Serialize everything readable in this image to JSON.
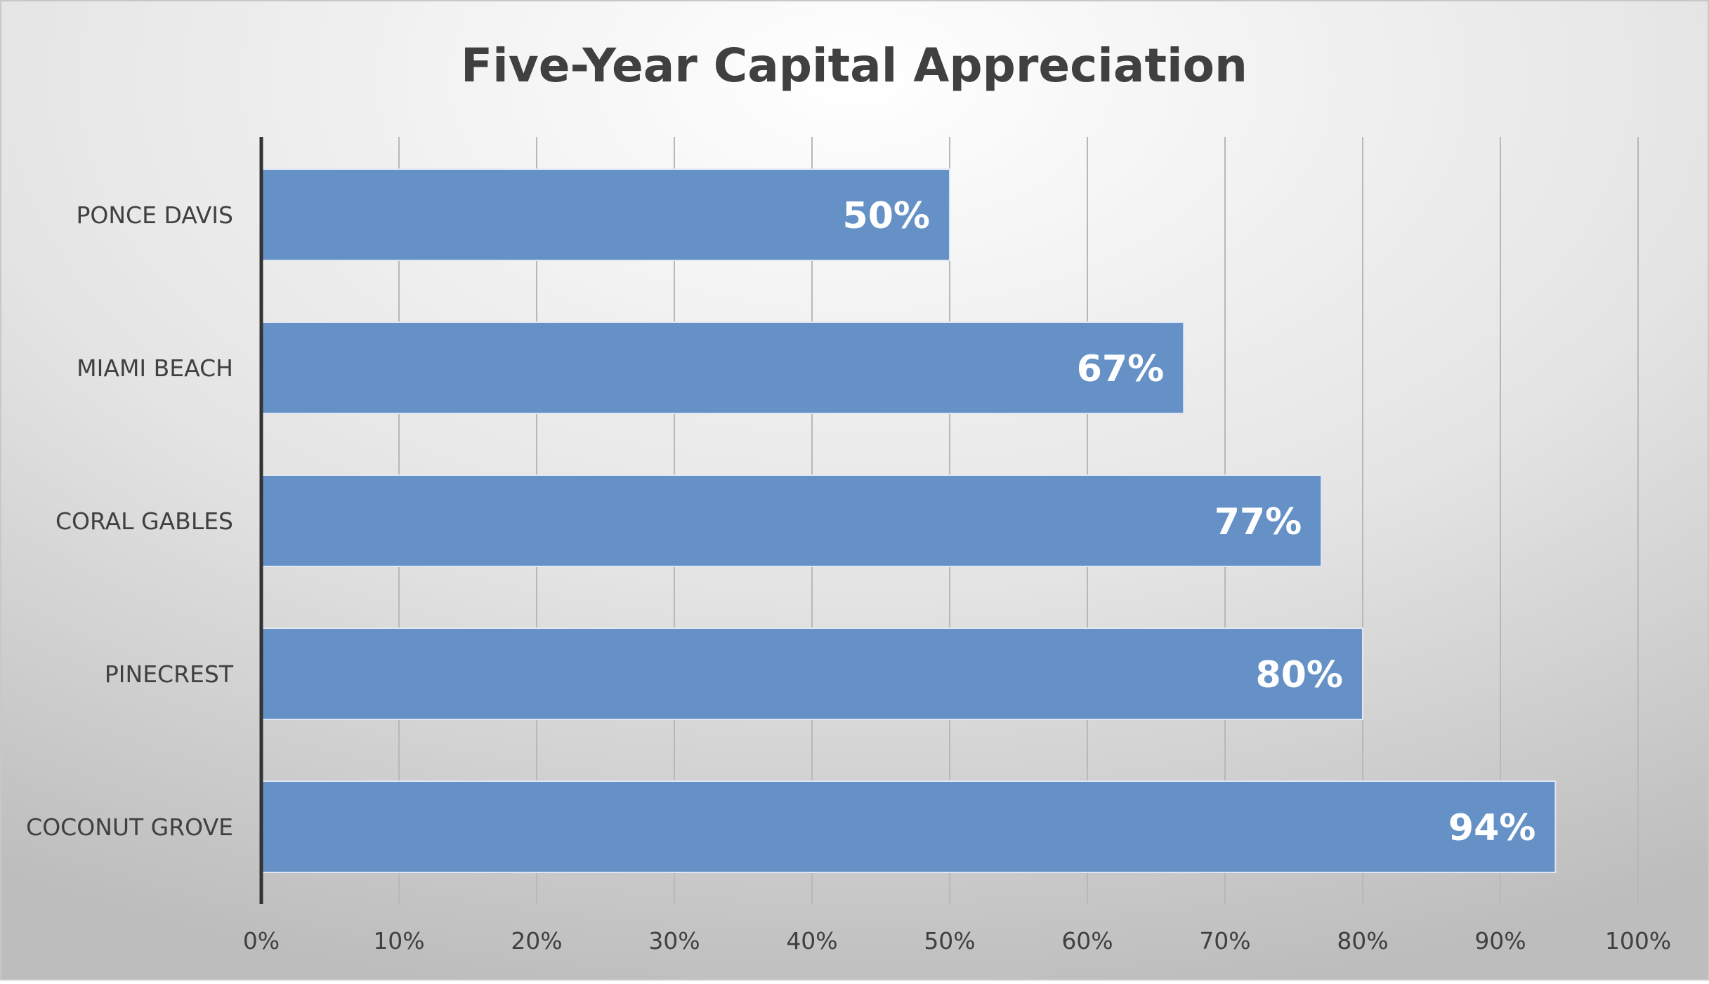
{
  "chart_data": {
    "type": "bar",
    "orientation": "horizontal",
    "title": "Five-Year Capital Appreciation",
    "xlabel": "",
    "ylabel": "",
    "categories": [
      "PONCE DAVIS",
      "MIAMI BEACH",
      "CORAL GABLES",
      "PINECREST",
      "COCONUT GROVE"
    ],
    "values": [
      50,
      67,
      77,
      80,
      94
    ],
    "data_labels": [
      "50%",
      "67%",
      "77%",
      "80%",
      "94%"
    ],
    "xlim": [
      0,
      100
    ],
    "x_ticks": [
      0,
      10,
      20,
      30,
      40,
      50,
      60,
      70,
      80,
      90,
      100
    ],
    "x_tick_labels": [
      "0%",
      "10%",
      "20%",
      "30%",
      "40%",
      "50%",
      "60%",
      "70%",
      "80%",
      "90%",
      "100%"
    ],
    "grid": true,
    "legend": "none",
    "colors": {
      "bar": "#6591c7",
      "bar_edge": "#dfe7f2",
      "grid": "#b8b8b8",
      "axis": "#333333",
      "text": "#404040",
      "data_label": "#ffffff",
      "background_light": "#ffffff",
      "background_dark": "#bfbfbf"
    }
  }
}
